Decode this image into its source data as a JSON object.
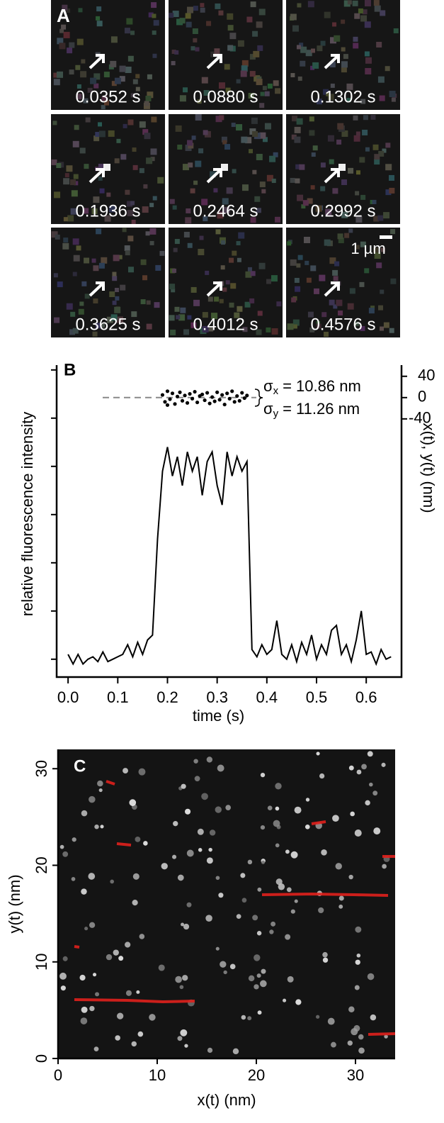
{
  "panel_a": {
    "label": "A",
    "scale_bar": "1 µm",
    "frames": [
      "0.0352 s",
      "0.0880 s",
      "0.1302 s",
      "0.1936 s",
      "0.2464 s",
      "0.2992 s",
      "0.3625 s",
      "0.4012 s",
      "0.4576 s"
    ]
  },
  "chart_data": [
    {
      "type": "line",
      "panel_label": "B",
      "x_label": "time (s)",
      "y_label": "relative fluorescence intensity",
      "y2_label": "x(t), y(t) (nm)",
      "xlim": [
        -0.023,
        0.671
      ],
      "xticks": [
        {
          "value": 0,
          "label": "0.0"
        },
        0.1,
        0.2,
        0.3,
        0.4,
        0.5,
        0.6
      ],
      "ylim": [
        -0.37,
        6.1
      ],
      "yticks": [
        0,
        1,
        2,
        3,
        4,
        5,
        6
      ],
      "y2lim": [
        -525,
        61
      ],
      "y2ticks": [
        40,
        0,
        -40
      ],
      "x": [
        0,
        0.01,
        0.02,
        0.03,
        0.04,
        0.05,
        0.06,
        0.07,
        0.08,
        0.09,
        0.1,
        0.11,
        0.12,
        0.13,
        0.14,
        0.15,
        0.16,
        0.17,
        0.18,
        0.19,
        0.2,
        0.21,
        0.22,
        0.23,
        0.24,
        0.25,
        0.26,
        0.27,
        0.28,
        0.29,
        0.3,
        0.31,
        0.32,
        0.33,
        0.34,
        0.35,
        0.36,
        0.37,
        0.38,
        0.39,
        0.4,
        0.41,
        0.42,
        0.43,
        0.44,
        0.45,
        0.46,
        0.47,
        0.48,
        0.49,
        0.5,
        0.51,
        0.52,
        0.53,
        0.54,
        0.55,
        0.56,
        0.57,
        0.58,
        0.59,
        0.6,
        0.61,
        0.62,
        0.63,
        0.64,
        0.65
      ],
      "series": [
        {
          "color": "#000000",
          "values": [
            0.1,
            -0.1,
            0.1,
            -0.1,
            0,
            0.05,
            -0.05,
            0.15,
            -0.05,
            0,
            0.05,
            0.1,
            0.3,
            0.05,
            0.35,
            0.1,
            0.4,
            0.5,
            2.5,
            3.9,
            4.4,
            3.8,
            4.2,
            3.6,
            4.3,
            3.9,
            4.2,
            3.4,
            4.1,
            4.3,
            3.6,
            3.2,
            4.3,
            3.8,
            4.2,
            3.9,
            4.1,
            0.2,
            0.05,
            0.3,
            0.1,
            0.2,
            0.8,
            0.1,
            0,
            0.3,
            -0.05,
            0.35,
            0.1,
            0.5,
            0,
            0.3,
            0.1,
            0.6,
            0.7,
            0.1,
            0.3,
            -0.05,
            0.4,
            1.0,
            0.1,
            0.15,
            -0.1,
            0.2,
            0,
            0.05
          ]
        }
      ],
      "positions": {
        "axis": "y2",
        "color": "#000000",
        "x": [
          0.19,
          0.195,
          0.2,
          0.205,
          0.21,
          0.215,
          0.22,
          0.225,
          0.23,
          0.235,
          0.24,
          0.245,
          0.25,
          0.255,
          0.26,
          0.265,
          0.27,
          0.275,
          0.28,
          0.285,
          0.29,
          0.295,
          0.3,
          0.305,
          0.31,
          0.315,
          0.32,
          0.325,
          0.33,
          0.335,
          0.34,
          0.345,
          0.35,
          0.355,
          0.36,
          0.2
        ],
        "y": [
          5,
          -8,
          12,
          -3,
          8,
          -12,
          2,
          10,
          -6,
          4,
          -10,
          7,
          -2,
          11,
          -9,
          3,
          6,
          -5,
          9,
          -11,
          1,
          -7,
          10,
          -4,
          5,
          -13,
          8,
          -2,
          12,
          -8,
          3,
          -6,
          9,
          -1,
          4,
          -14
        ]
      },
      "annotations": [
        {
          "symbol": "σ",
          "subscript": "x",
          "text": "= 10.86 nm"
        },
        {
          "symbol": "σ",
          "subscript": "y",
          "text": "= 11.26 nm"
        }
      ]
    },
    {
      "type": "image",
      "panel_label": "C",
      "x_label": "x(t) (nm)",
      "y_label": "y(t) (nm)",
      "xlim": [
        0,
        34
      ],
      "xticks": [
        0,
        10,
        20,
        30
      ],
      "ylim": [
        0,
        32
      ],
      "yticks": [
        0,
        10,
        20,
        30
      ]
    }
  ]
}
